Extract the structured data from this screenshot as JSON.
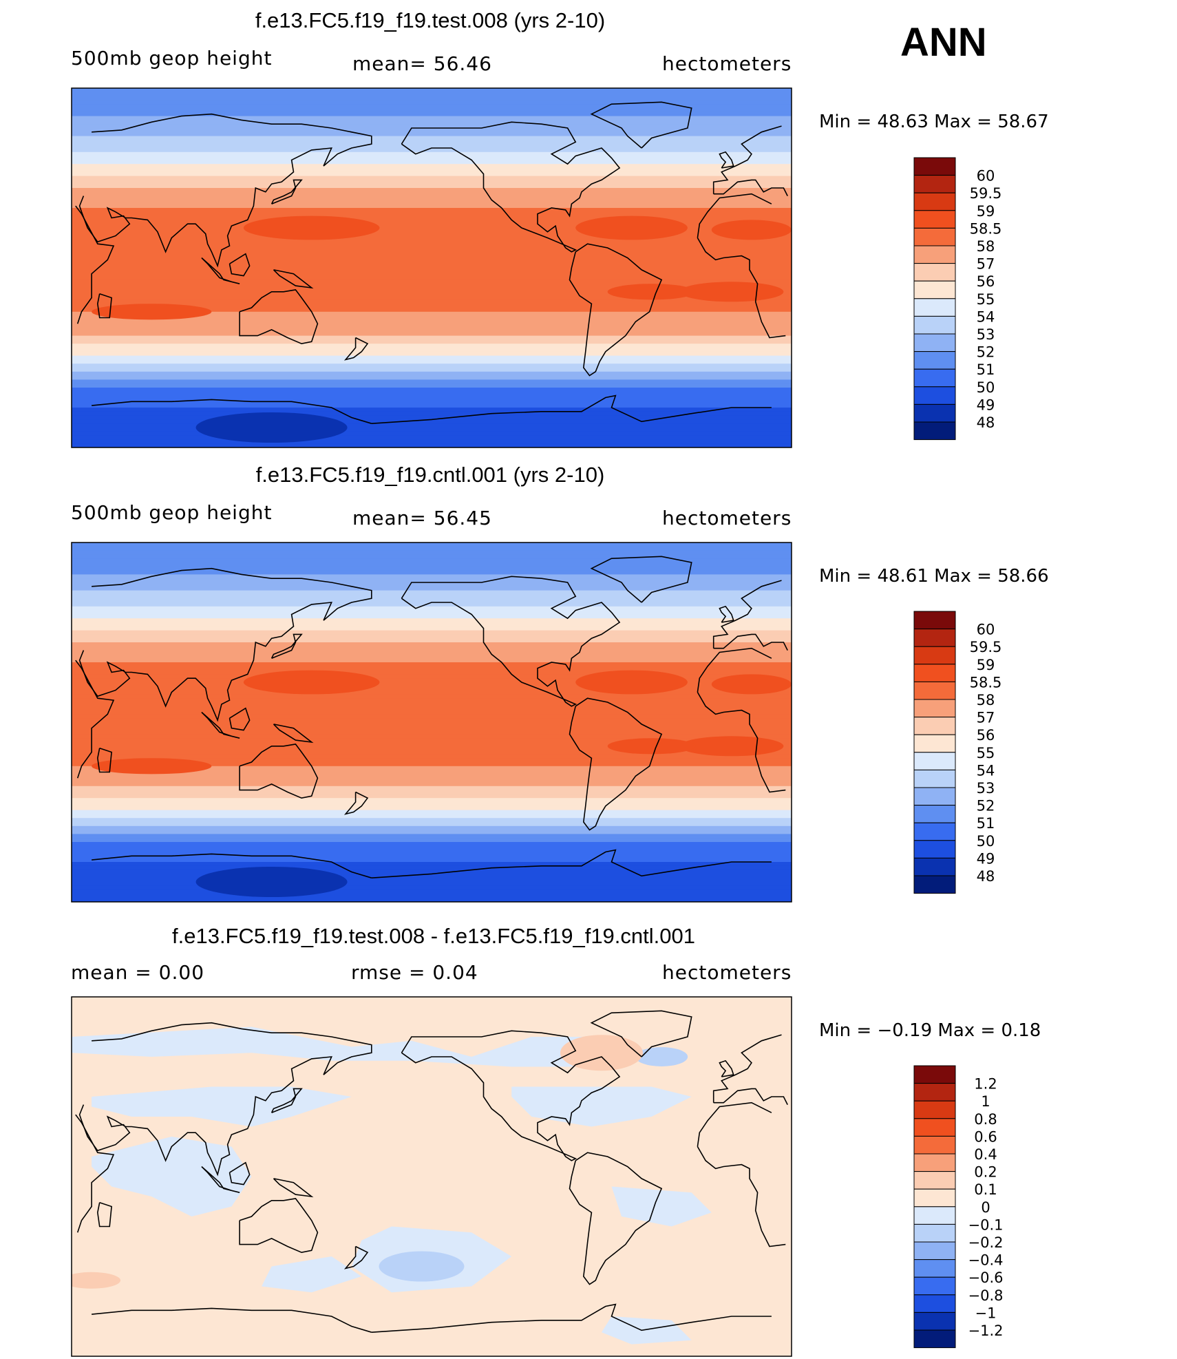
{
  "season": "ANN",
  "chart_data": [
    {
      "type": "heatmap",
      "title": "f.e13.FC5.f19_f19.test.008 (yrs 2-10)",
      "variable": "500mb geop height",
      "stat": "mean=   56.46",
      "units": "hectometers",
      "min_max": "Min =   48.63  Max =   58.67",
      "min": 48.63,
      "max": 58.67,
      "mean": 56.46,
      "colorbar_levels": [
        "60",
        "59.5",
        "59",
        "58.5",
        "58",
        "57",
        "56",
        "55",
        "54",
        "53",
        "52",
        "51",
        "50",
        "49",
        "48"
      ],
      "colorbar_colors": [
        "#7a0a0a",
        "#b32511",
        "#d83a13",
        "#f0501f",
        "#f46b3a",
        "#f7a07a",
        "#fbcdb3",
        "#fde6d3",
        "#dbe9fb",
        "#b9d2f8",
        "#8fb2f4",
        "#5f8ff1",
        "#386cf0",
        "#1d4fe0",
        "#0a32b0",
        "#021c7a"
      ],
      "lat_profile": [
        {
          "lat": 90,
          "value": 51.5
        },
        {
          "lat": 75,
          "value": 52.0
        },
        {
          "lat": 62,
          "value": 53.5
        },
        {
          "lat": 50,
          "value": 55.2
        },
        {
          "lat": 38,
          "value": 57.2
        },
        {
          "lat": 25,
          "value": 58.4
        },
        {
          "lat": 15,
          "value": 58.3
        },
        {
          "lat": 0,
          "value": 58.2
        },
        {
          "lat": -15,
          "value": 58.3
        },
        {
          "lat": -28,
          "value": 57.8
        },
        {
          "lat": -38,
          "value": 56.2
        },
        {
          "lat": -46,
          "value": 54.3
        },
        {
          "lat": -54,
          "value": 52.3
        },
        {
          "lat": -62,
          "value": 50.8
        },
        {
          "lat": -72,
          "value": 49.8
        },
        {
          "lat": -90,
          "value": 49.4
        }
      ]
    },
    {
      "type": "heatmap",
      "title": "f.e13.FC5.f19_f19.cntl.001 (yrs 2-10)",
      "variable": "500mb geop height",
      "stat": "mean=   56.45",
      "units": "hectometers",
      "min_max": "Min =   48.61  Max =   58.66",
      "min": 48.61,
      "max": 58.66,
      "mean": 56.45,
      "colorbar_levels": [
        "60",
        "59.5",
        "59",
        "58.5",
        "58",
        "57",
        "56",
        "55",
        "54",
        "53",
        "52",
        "51",
        "50",
        "49",
        "48"
      ],
      "colorbar_colors": [
        "#7a0a0a",
        "#b32511",
        "#d83a13",
        "#f0501f",
        "#f46b3a",
        "#f7a07a",
        "#fbcdb3",
        "#fde6d3",
        "#dbe9fb",
        "#b9d2f8",
        "#8fb2f4",
        "#5f8ff1",
        "#386cf0",
        "#1d4fe0",
        "#0a32b0",
        "#021c7a"
      ]
    },
    {
      "type": "heatmap",
      "title": "f.e13.FC5.f19_f19.test.008 - f.e13.FC5.f19_f19.cntl.001",
      "stat_left": "mean =     0.00",
      "stat_mid": "rmse =     0.04",
      "units": "hectometers",
      "min_max": "Min =   −0.19  Max =     0.18",
      "min": -0.19,
      "max": 0.18,
      "mean": 0.0,
      "rmse": 0.04,
      "colorbar_levels": [
        "1.2",
        "1",
        "0.8",
        "0.6",
        "0.4",
        "0.2",
        "0.1",
        "0",
        "−0.1",
        "−0.2",
        "−0.4",
        "−0.6",
        "−0.8",
        "−1",
        "−1.2"
      ],
      "colorbar_colors": [
        "#7a0a0a",
        "#b32511",
        "#d83a13",
        "#f0501f",
        "#f46b3a",
        "#f7a07a",
        "#fbcdb3",
        "#fde6d3",
        "#dbe9fb",
        "#b9d2f8",
        "#8fb2f4",
        "#5f8ff1",
        "#386cf0",
        "#1d4fe0",
        "#0a32b0",
        "#021c7a"
      ]
    }
  ]
}
